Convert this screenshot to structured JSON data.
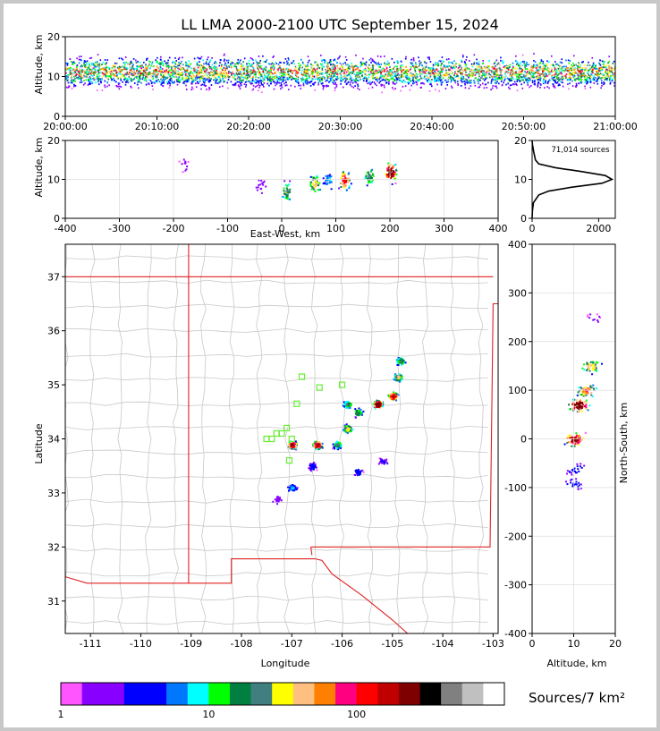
{
  "chart_data": [
    {
      "id": "time_height",
      "type": "heatmap",
      "title": "LL LMA 2000-2100 UTC September 15, 2024",
      "xlabel": "",
      "ylabel": "Altitude, km",
      "x_ticks": [
        "20:00:00",
        "20:10:00",
        "20:20:00",
        "20:30:00",
        "20:40:00",
        "20:50:00",
        "21:00:00"
      ],
      "xlim_minutes": [
        0,
        60
      ],
      "ylim": [
        0,
        20
      ],
      "y_ticks": [
        0,
        10,
        20
      ]
    },
    {
      "id": "ew_height",
      "type": "heatmap",
      "xlabel": "East-West, km",
      "ylabel": "Altitude, km",
      "xlim": [
        -400,
        400
      ],
      "x_ticks": [
        -400,
        -300,
        -200,
        -100,
        0,
        100,
        200,
        300,
        400
      ],
      "ylim": [
        0,
        20
      ],
      "y_ticks": [
        0,
        10,
        20
      ],
      "clusters": [
        {
          "x": -180,
          "z": 14,
          "density": 0.05
        },
        {
          "x": -40,
          "z": 9,
          "density": 0.1
        },
        {
          "x": 8,
          "z": 7,
          "density": 0.5
        },
        {
          "x": 60,
          "z": 9,
          "density": 0.6
        },
        {
          "x": 85,
          "z": 10,
          "density": 0.3
        },
        {
          "x": 115,
          "z": 10,
          "density": 0.8
        },
        {
          "x": 160,
          "z": 11,
          "density": 0.5
        },
        {
          "x": 200,
          "z": 12,
          "density": 1.0
        }
      ]
    },
    {
      "id": "altitude_histogram",
      "type": "line",
      "annotation": "71,014 sources",
      "xlim": [
        0,
        2500
      ],
      "x_ticks": [
        0,
        2000
      ],
      "ylim": [
        0,
        20
      ],
      "y_ticks": [
        0,
        10,
        20
      ],
      "profile": [
        {
          "z": 0,
          "count": 0
        },
        {
          "z": 2,
          "count": 10
        },
        {
          "z": 4,
          "count": 40
        },
        {
          "z": 6,
          "count": 200
        },
        {
          "z": 7,
          "count": 500
        },
        {
          "z": 8,
          "count": 1200
        },
        {
          "z": 9,
          "count": 2100
        },
        {
          "z": 10,
          "count": 2400
        },
        {
          "z": 11,
          "count": 2200
        },
        {
          "z": 12,
          "count": 1500
        },
        {
          "z": 13,
          "count": 700
        },
        {
          "z": 14,
          "count": 200
        },
        {
          "z": 15,
          "count": 100
        },
        {
          "z": 17,
          "count": 50
        },
        {
          "z": 19,
          "count": 10
        },
        {
          "z": 20,
          "count": 0
        }
      ]
    },
    {
      "id": "plan_view",
      "type": "heatmap",
      "xlabel": "Longitude",
      "ylabel": "Latitude",
      "xlim": [
        -111.5,
        -102.9
      ],
      "x_ticks": [
        -111,
        -110,
        -109,
        -108,
        -107,
        -106,
        -105,
        -104,
        -103
      ],
      "ylim": [
        30.4,
        37.6
      ],
      "y_ticks": [
        31,
        32,
        33,
        34,
        35,
        36,
        37
      ],
      "stations": [
        {
          "lon": -107.2,
          "lat": 34.1
        },
        {
          "lon": -107.1,
          "lat": 34.2
        },
        {
          "lon": -107.05,
          "lat": 33.6
        },
        {
          "lon": -106.9,
          "lat": 34.65
        },
        {
          "lon": -106.8,
          "lat": 35.15
        },
        {
          "lon": -106.45,
          "lat": 34.95
        },
        {
          "lon": -106.0,
          "lat": 35.0
        },
        {
          "lon": -107.4,
          "lat": 34.0
        },
        {
          "lon": -107.3,
          "lat": 34.1
        },
        {
          "lon": -107.0,
          "lat": 34.0
        },
        {
          "lon": -107.5,
          "lat": 34.0
        }
      ],
      "clusters": [
        {
          "lon": -107.0,
          "lat": 33.9,
          "density": 0.9
        },
        {
          "lon": -106.5,
          "lat": 33.9,
          "density": 0.9
        },
        {
          "lon": -106.1,
          "lat": 33.9,
          "density": 0.5
        },
        {
          "lon": -105.9,
          "lat": 34.2,
          "density": 0.6
        },
        {
          "lon": -105.7,
          "lat": 34.5,
          "density": 0.5
        },
        {
          "lon": -105.3,
          "lat": 34.65,
          "density": 1.0
        },
        {
          "lon": -105.0,
          "lat": 34.8,
          "density": 0.9
        },
        {
          "lon": -104.9,
          "lat": 35.15,
          "density": 0.6
        },
        {
          "lon": -104.85,
          "lat": 35.45,
          "density": 0.5
        },
        {
          "lon": -105.9,
          "lat": 34.65,
          "density": 0.5
        },
        {
          "lon": -107.0,
          "lat": 33.1,
          "density": 0.3
        },
        {
          "lon": -106.6,
          "lat": 33.5,
          "density": 0.2
        },
        {
          "lon": -105.7,
          "lat": 33.4,
          "density": 0.2
        },
        {
          "lon": -105.2,
          "lat": 33.6,
          "density": 0.15
        },
        {
          "lon": -107.3,
          "lat": 32.9,
          "density": 0.1
        }
      ]
    },
    {
      "id": "ns_height",
      "type": "heatmap",
      "xlabel": "Altitude, km",
      "ylabel": "North-South, km",
      "xlim": [
        0,
        20
      ],
      "x_ticks": [
        0,
        10,
        20
      ],
      "ylim": [
        -400,
        400
      ],
      "y_ticks": [
        -400,
        -300,
        -200,
        -100,
        0,
        100,
        200,
        300,
        400
      ],
      "clusters": [
        {
          "z": 10,
          "y": 0,
          "density": 0.9
        },
        {
          "z": 11,
          "y": 70,
          "density": 1.0
        },
        {
          "z": 13,
          "y": 100,
          "density": 0.7
        },
        {
          "z": 14,
          "y": 150,
          "density": 0.6
        },
        {
          "z": 10,
          "y": -60,
          "density": 0.2
        },
        {
          "z": 10,
          "y": -90,
          "density": 0.2
        },
        {
          "z": 15,
          "y": 250,
          "density": 0.03
        }
      ]
    }
  ],
  "colorbar": {
    "label": "Sources/7 km²",
    "tick_labels": [
      "1",
      "10",
      "100"
    ],
    "colors": [
      "#ff55ff",
      "#8800ff",
      "#8800ff",
      "#0000ff",
      "#0000ff",
      "#0077ff",
      "#00ffff",
      "#00ff00",
      "#007f40",
      "#407f7f",
      "#ffff00",
      "#ffbf80",
      "#ff8000",
      "#ff0080",
      "#ff0000",
      "#c00000",
      "#7f0000",
      "#000000",
      "#808080",
      "#c0c0c0",
      "#ffffff"
    ]
  }
}
